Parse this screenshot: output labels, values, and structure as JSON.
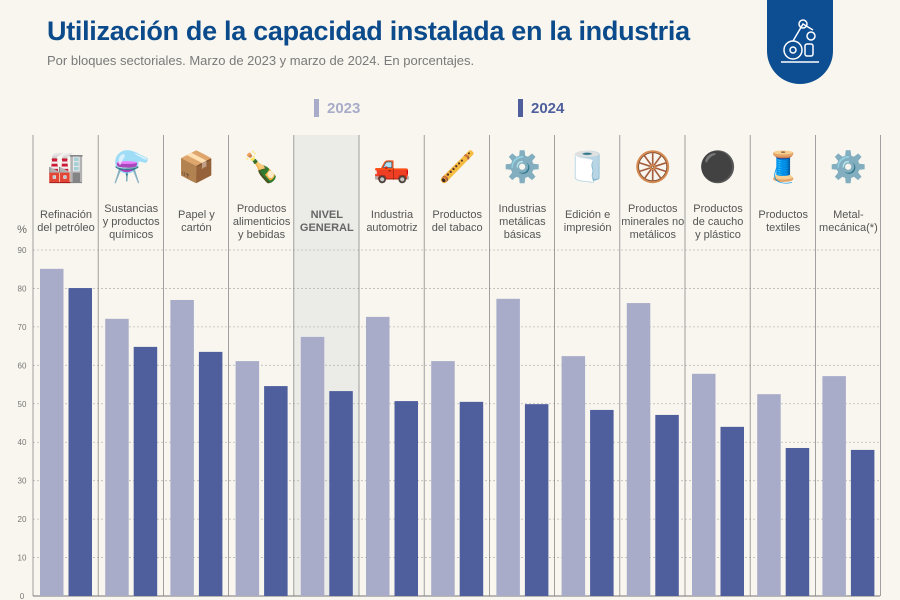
{
  "title": "Utilización de la capacidad instalada en la industria",
  "subtitle": "Por bloques sectoriales. Marzo de 2023 y marzo de 2024. En porcentajes.",
  "colors": {
    "s2023": "#a9acc9",
    "s2024": "#4f5f9e",
    "title": "#0b4a8b",
    "highlight": "#ebebe8"
  },
  "chart_data": {
    "type": "bar",
    "ylabel": "%",
    "ylim": [
      0,
      90
    ],
    "yticks": [
      0,
      10,
      20,
      30,
      40,
      50,
      60,
      70,
      80,
      90
    ],
    "grid": true,
    "legend_placement": "top",
    "categories": [
      "Refinación del petróleo",
      "Sustancias y productos químicos",
      "Papel y cartón",
      "Productos alimenticios y bebidas",
      "NIVEL GENERAL",
      "Industria automotriz",
      "Productos del tabaco",
      "Industrias metálicas básicas",
      "Edición e impresión",
      "Productos minerales no metálicos",
      "Productos de caucho y plástico",
      "Productos textiles",
      "Metal-mecánica(*)"
    ],
    "category_lines": [
      [
        "Refinación",
        "del petróleo"
      ],
      [
        "Sustancias",
        "y productos",
        "químicos"
      ],
      [
        "Papel y",
        "cartón"
      ],
      [
        "Productos",
        "alimenticios",
        "y bebidas"
      ],
      [
        "NIVEL",
        "GENERAL"
      ],
      [
        "Industria",
        "automotriz"
      ],
      [
        "Productos",
        "del tabaco"
      ],
      [
        "Industrias",
        "metálicas",
        "básicas"
      ],
      [
        "Edición e",
        "impresión"
      ],
      [
        "Productos",
        "minerales no",
        "metálicos"
      ],
      [
        "Productos",
        "de caucho",
        "y plástico"
      ],
      [
        "Productos",
        "textiles"
      ],
      [
        "Metal-",
        "mecánica(*)"
      ]
    ],
    "icons": [
      "refinery-icon",
      "flask-icon",
      "box-icon",
      "bottle-bread-icon",
      "",
      "truck-icon",
      "pipe-icon",
      "grinder-icon",
      "printing-roll-icon",
      "cement-mixer-icon",
      "tire-icon",
      "fabric-icon",
      "gears-icon"
    ],
    "highlight_category": "NIVEL GENERAL",
    "series": [
      {
        "name": "2023",
        "values": [
          85.1,
          72.1,
          77.0,
          61.1,
          67.4,
          72.6,
          61.1,
          77.3,
          62.4,
          76.2,
          57.8,
          52.5,
          57.2
        ]
      },
      {
        "name": "2024",
        "values": [
          80.1,
          64.8,
          63.5,
          54.6,
          53.3,
          50.7,
          50.5,
          49.9,
          48.4,
          47.1,
          44.0,
          38.5,
          38.0
        ]
      }
    ]
  }
}
